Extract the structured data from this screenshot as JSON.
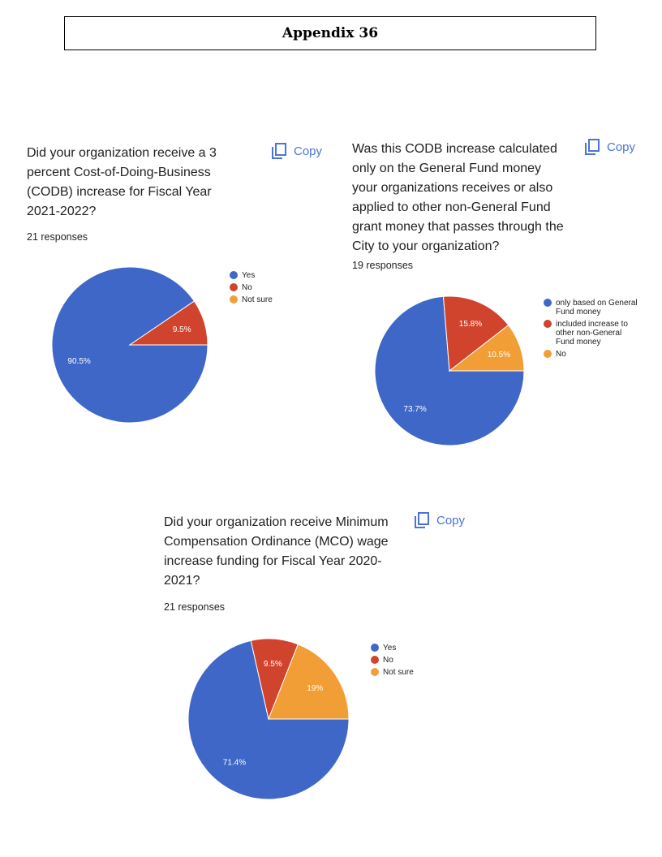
{
  "header": {
    "title": "Appendix 36"
  },
  "copy_label": "Copy",
  "questions": [
    {
      "text": "Did your organization receive a 3 percent Cost-of-Doing-Business (CODB) increase for Fiscal Year 2021-2022?",
      "responses": "21 responses"
    },
    {
      "text": "Was this CODB increase calculated only on the General Fund money your organizations receives or also applied to other non-General Fund grant money that passes through the City to your organization?",
      "responses": "19 responses"
    },
    {
      "text": "Did your organization receive Minimum Compensation Ordinance (MCO) wage increase funding for Fiscal Year 2020-2021?",
      "responses": "21 responses"
    }
  ],
  "colors": {
    "blue": "#3f67c7",
    "red": "#d0432d",
    "orange": "#f29e36",
    "copy_blue": "#4a74d8"
  },
  "chart_data": [
    {
      "type": "pie",
      "categories": [
        "Yes",
        "No",
        "Not sure"
      ],
      "values": [
        90.5,
        9.5,
        0
      ],
      "labels": [
        "90.5%",
        "9.5%",
        ""
      ],
      "colors": [
        "#3f67c7",
        "#d0432d",
        "#f29e36"
      ],
      "legend_position": "right"
    },
    {
      "type": "pie",
      "categories": [
        "only based on General Fund money",
        "included increase to other non-General Fund money",
        "No"
      ],
      "values": [
        73.7,
        15.8,
        10.5
      ],
      "labels": [
        "73.7%",
        "15.8%",
        "10.5%"
      ],
      "colors": [
        "#3f67c7",
        "#d0432d",
        "#f29e36"
      ],
      "legend_position": "right"
    },
    {
      "type": "pie",
      "categories": [
        "Yes",
        "No",
        "Not sure"
      ],
      "values": [
        71.4,
        9.5,
        19
      ],
      "labels": [
        "71.4%",
        "9.5%",
        "19%"
      ],
      "colors": [
        "#3f67c7",
        "#d0432d",
        "#f29e36"
      ],
      "legend_position": "right"
    }
  ]
}
